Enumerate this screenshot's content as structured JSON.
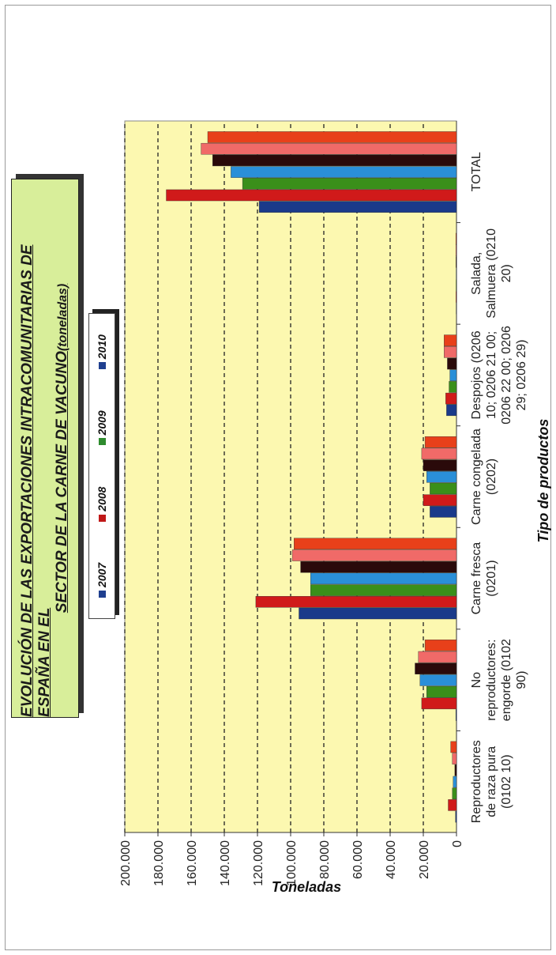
{
  "title_line1": "EVOLUCIÓN DE LAS EXPORTACIONES INTRACOMUNITARIAS DE ESPAÑA EN EL",
  "title_line2": "SECTOR DE LA CARNE DE VACUNO",
  "title_suffix": "(toneladas)",
  "legend": [
    {
      "label": "2007",
      "color": "#1f3f8f"
    },
    {
      "label": "2008",
      "color": "#c01818"
    },
    {
      "label": "2009",
      "color": "#2e8b2e"
    },
    {
      "label": "2010",
      "color": "#1f3f8f"
    }
  ],
  "chart_data": {
    "type": "bar",
    "orientation": "rotated-90",
    "xlabel": "Tipo de productos",
    "ylabel": "Toneladas",
    "ylim": [
      0,
      200000
    ],
    "yticks": [
      "0",
      "20.000",
      "40.000",
      "60.000",
      "80.000",
      "100.000",
      "120.000",
      "140.000",
      "160.000",
      "180.000",
      "200.000"
    ],
    "grid": true,
    "categories": [
      [
        "Reproductores",
        "de raza pura",
        "(0102 10)"
      ],
      [
        "No",
        "reproductores:",
        "engorde (0102",
        "90)"
      ],
      [
        "Carne fresca",
        "(0201)"
      ],
      [
        "Carne congelada",
        "(0202)"
      ],
      [
        "Despojos (0206",
        "10; 0206 21 00;",
        "0206 22 00; 0206",
        "29; 0206 29)"
      ],
      [
        "Salada,",
        "Salmuera (0210",
        "20)"
      ],
      [
        "TOTAL"
      ]
    ],
    "series": [
      {
        "name": "2007",
        "color": "#1a3a8a",
        "values": [
          600,
          400,
          95000,
          16000,
          6000,
          200,
          119000
        ]
      },
      {
        "name": "2008",
        "color": "#d01a1a",
        "values": [
          5000,
          21000,
          121000,
          20000,
          6500,
          300,
          175000
        ]
      },
      {
        "name": "2009",
        "color": "#3a8f1a",
        "values": [
          2500,
          18000,
          88000,
          16000,
          4500,
          250,
          129000
        ]
      },
      {
        "name": "2010",
        "color": "#2a8fd8",
        "values": [
          2000,
          22000,
          88000,
          18000,
          4000,
          200,
          136000
        ]
      },
      {
        "name": "",
        "color": "#2a0a0a",
        "values": [
          1000,
          25000,
          94000,
          20000,
          5500,
          300,
          147000
        ]
      },
      {
        "name": "",
        "color": "#f06a68",
        "values": [
          2500,
          23000,
          99000,
          21000,
          7500,
          400,
          154000
        ]
      },
      {
        "name": "",
        "color": "#e8401a",
        "values": [
          3500,
          19000,
          98000,
          19000,
          7500,
          400,
          150000
        ]
      }
    ]
  }
}
